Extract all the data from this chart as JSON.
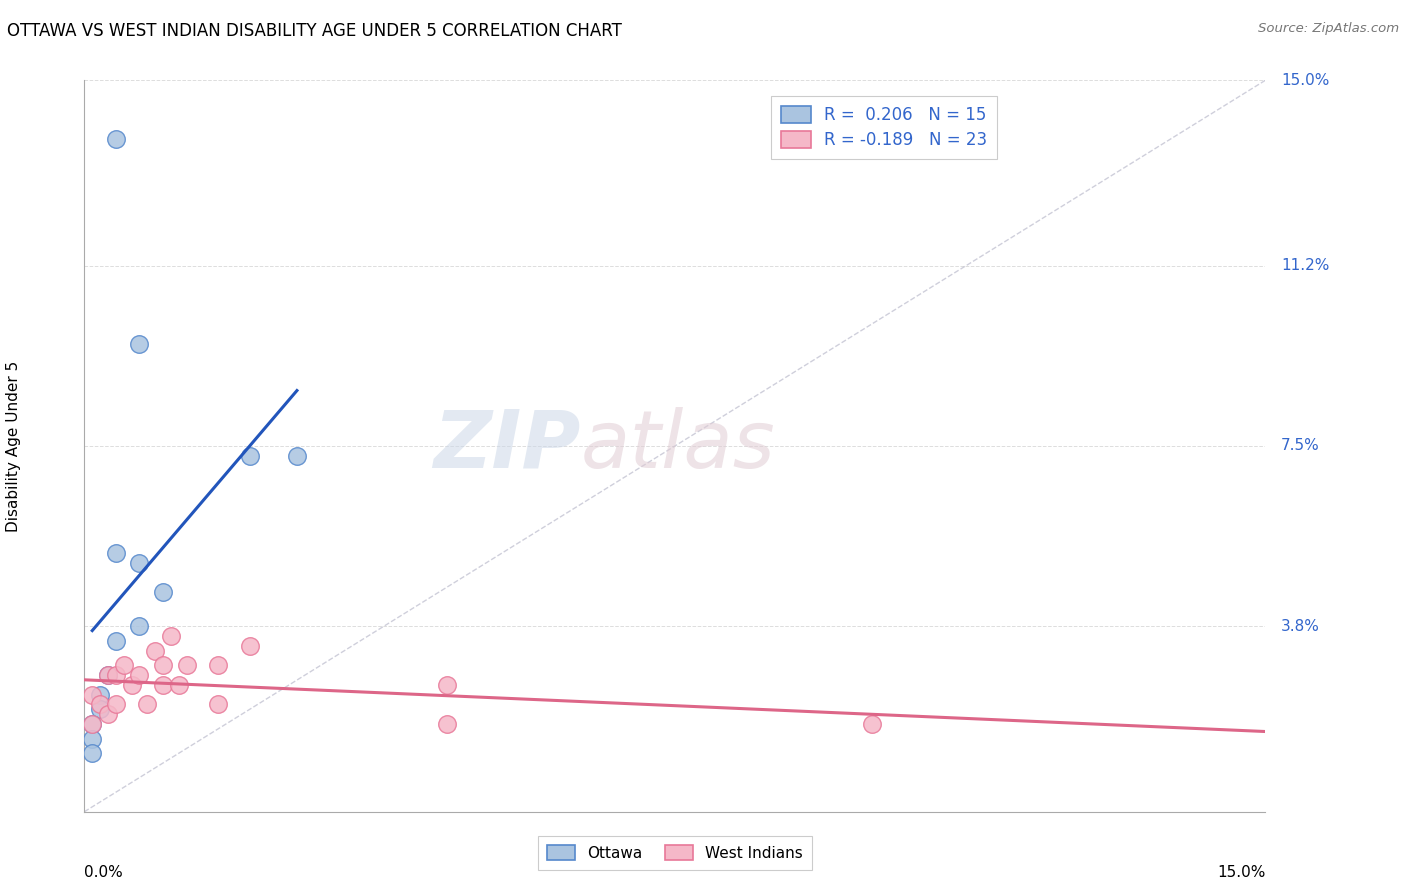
{
  "title": "OTTAWA VS WEST INDIAN DISABILITY AGE UNDER 5 CORRELATION CHART",
  "source": "Source: ZipAtlas.com",
  "ylabel": "Disability Age Under 5",
  "xmin": 0.0,
  "xmax": 0.15,
  "ymin": 0.0,
  "ymax": 0.15,
  "yticks": [
    0.038,
    0.075,
    0.112,
    0.15
  ],
  "ytick_labels": [
    "3.8%",
    "7.5%",
    "11.2%",
    "15.0%"
  ],
  "grid_color": "#c8c8c8",
  "ottawa_color": "#aac4e0",
  "ottawa_edge_color": "#5588cc",
  "west_indian_color": "#f5b8c8",
  "west_indian_edge_color": "#e87898",
  "trend_ottawa_color": "#2255bb",
  "trend_west_indian_color": "#dd6688",
  "diagonal_color": "#bbbbcc",
  "R_ottawa": 0.206,
  "N_ottawa": 15,
  "R_west_indian": -0.189,
  "N_west_indian": 23,
  "ottawa_x": [
    0.004,
    0.007,
    0.021,
    0.027,
    0.004,
    0.007,
    0.01,
    0.007,
    0.004,
    0.003,
    0.002,
    0.002,
    0.001,
    0.001,
    0.001
  ],
  "ottawa_y": [
    0.138,
    0.096,
    0.073,
    0.073,
    0.053,
    0.051,
    0.045,
    0.038,
    0.035,
    0.028,
    0.024,
    0.021,
    0.018,
    0.015,
    0.012
  ],
  "west_indian_x": [
    0.001,
    0.001,
    0.002,
    0.003,
    0.003,
    0.004,
    0.004,
    0.005,
    0.006,
    0.007,
    0.008,
    0.009,
    0.01,
    0.01,
    0.011,
    0.012,
    0.013,
    0.017,
    0.017,
    0.021,
    0.046,
    0.046,
    0.1
  ],
  "west_indian_y": [
    0.024,
    0.018,
    0.022,
    0.028,
    0.02,
    0.028,
    0.022,
    0.03,
    0.026,
    0.028,
    0.022,
    0.033,
    0.03,
    0.026,
    0.036,
    0.026,
    0.03,
    0.03,
    0.022,
    0.034,
    0.026,
    0.018,
    0.018
  ]
}
